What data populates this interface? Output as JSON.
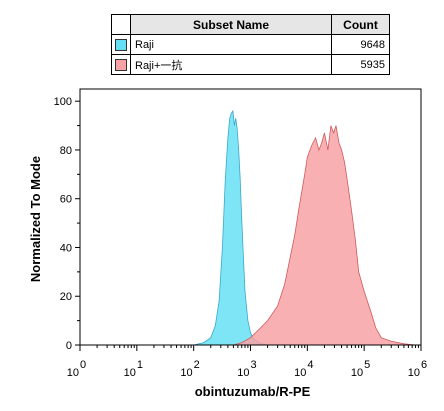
{
  "legend": {
    "headers": {
      "name": "Subset Name",
      "count": "Count"
    },
    "rows": [
      {
        "name": "Raji",
        "count": "9648",
        "color": "#66e0f5"
      },
      {
        "name": "Raji+一抗",
        "count": "5935",
        "color": "#f7a2a4"
      }
    ]
  },
  "chart_data": {
    "type": "area",
    "xlabel": "obintuzumab/R-PE",
    "ylabel": "Normalized To Mode",
    "x_scale": "log",
    "xlim": [
      1,
      1000000
    ],
    "ylim": [
      0,
      105
    ],
    "x_ticks": [
      {
        "base": "10",
        "exp": "0"
      },
      {
        "base": "10",
        "exp": "1"
      },
      {
        "base": "10",
        "exp": "2"
      },
      {
        "base": "10",
        "exp": "3"
      },
      {
        "base": "10",
        "exp": "4"
      },
      {
        "base": "10",
        "exp": "5"
      },
      {
        "base": "10",
        "exp": "6"
      }
    ],
    "y_ticks": [
      "0",
      "20",
      "40",
      "60",
      "80",
      "100"
    ],
    "series": [
      {
        "name": "Raji",
        "fill": "#66e0f5",
        "stroke": "#3aa8c9",
        "x": [
          100,
          150,
          200,
          240,
          280,
          320,
          360,
          400,
          430,
          460,
          490,
          520,
          550,
          580,
          620,
          660,
          700,
          750,
          800,
          900,
          1000,
          1100,
          1300,
          1600,
          2000
        ],
        "values": [
          0,
          1,
          3,
          8,
          18,
          40,
          68,
          85,
          93,
          95,
          96,
          90,
          93,
          89,
          80,
          68,
          52,
          36,
          22,
          10,
          5,
          3,
          1.5,
          0.5,
          0
        ]
      },
      {
        "name": "Raji+一抗",
        "fill": "#f7a2a4",
        "stroke": "#d05a5c",
        "x": [
          500,
          700,
          1000,
          1500,
          2000,
          3000,
          4000,
          5000,
          6000,
          7000,
          8000,
          9000,
          10000,
          12000,
          14000,
          16000,
          18000,
          20000,
          23000,
          26000,
          29000,
          32000,
          36000,
          40000,
          45000,
          50000,
          60000,
          70000,
          80000,
          100000,
          130000,
          160000,
          200000,
          300000,
          500000,
          800000
        ],
        "values": [
          0,
          1,
          3,
          7,
          10,
          16,
          25,
          36,
          45,
          55,
          63,
          70,
          77,
          82,
          85,
          80,
          83,
          87,
          80,
          90,
          87,
          90,
          83,
          80,
          75,
          68,
          55,
          43,
          30,
          22,
          14,
          7,
          3,
          1.5,
          0.5,
          0
        ]
      }
    ]
  }
}
